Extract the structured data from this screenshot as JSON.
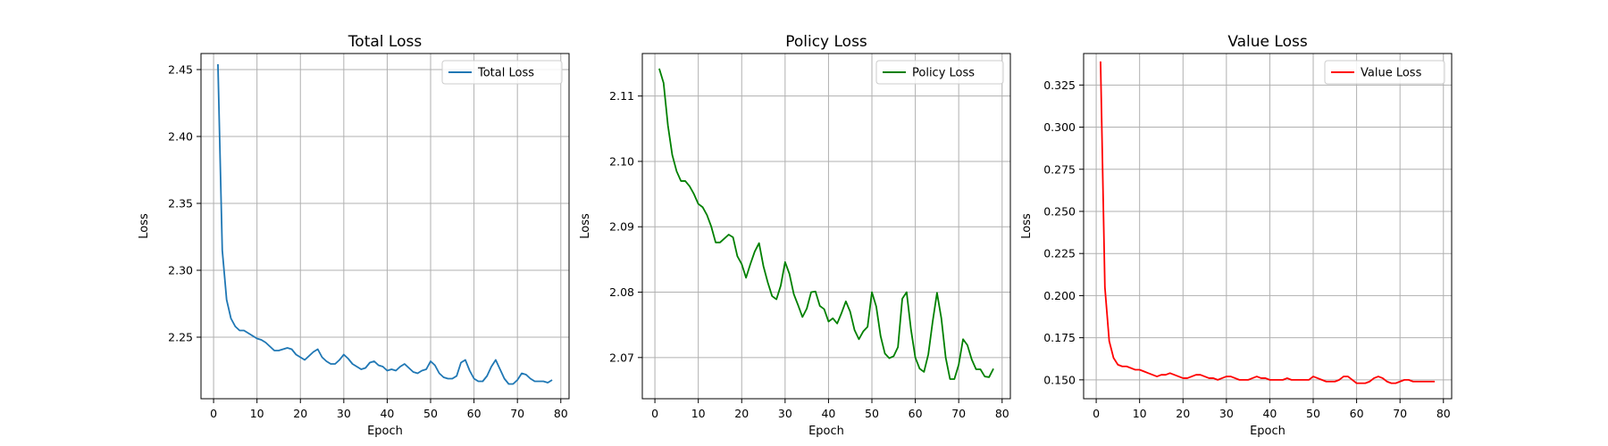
{
  "chart_data": [
    {
      "type": "line",
      "title": "Total Loss",
      "xlabel": "Epoch",
      "ylabel": "Loss",
      "xlim": [
        -2.9,
        81.9
      ],
      "ylim": [
        2.204,
        2.462
      ],
      "xticks": [
        0,
        10,
        20,
        30,
        40,
        50,
        60,
        70,
        80
      ],
      "yticks": [
        2.25,
        2.3,
        2.35,
        2.4,
        2.45
      ],
      "ytick_decimals": 2,
      "grid": true,
      "legend": "upper right",
      "series": [
        {
          "name": "Total Loss",
          "color": "#1f77b4",
          "x": [
            1,
            2,
            3,
            4,
            5,
            6,
            7,
            8,
            9,
            10,
            11,
            12,
            13,
            14,
            15,
            16,
            17,
            18,
            19,
            20,
            21,
            22,
            23,
            24,
            25,
            26,
            27,
            28,
            29,
            30,
            31,
            32,
            33,
            34,
            35,
            36,
            37,
            38,
            39,
            40,
            41,
            42,
            43,
            44,
            45,
            46,
            47,
            48,
            49,
            50,
            51,
            52,
            53,
            54,
            55,
            56,
            57,
            58,
            59,
            60,
            61,
            62,
            63,
            64,
            65,
            66,
            67,
            68,
            69,
            70,
            71,
            72,
            73,
            74,
            75,
            76,
            77,
            78
          ],
          "values": [
            2.454,
            2.315,
            2.278,
            2.264,
            2.258,
            2.255,
            2.255,
            2.253,
            2.251,
            2.249,
            2.248,
            2.246,
            2.243,
            2.24,
            2.24,
            2.241,
            2.242,
            2.241,
            2.237,
            2.235,
            2.233,
            2.236,
            2.239,
            2.241,
            2.235,
            2.232,
            2.23,
            2.23,
            2.233,
            2.237,
            2.234,
            2.23,
            2.228,
            2.226,
            2.227,
            2.231,
            2.232,
            2.229,
            2.228,
            2.225,
            2.226,
            2.225,
            2.228,
            2.23,
            2.227,
            2.224,
            2.223,
            2.225,
            2.226,
            2.232,
            2.229,
            2.223,
            2.22,
            2.219,
            2.219,
            2.221,
            2.231,
            2.233,
            2.225,
            2.219,
            2.217,
            2.217,
            2.221,
            2.228,
            2.233,
            2.226,
            2.219,
            2.215,
            2.215,
            2.218,
            2.223,
            2.222,
            2.219,
            2.217,
            2.217,
            2.217,
            2.216,
            2.218
          ]
        }
      ]
    },
    {
      "type": "line",
      "title": "Policy Loss",
      "xlabel": "Epoch",
      "ylabel": "Loss",
      "xlim": [
        -2.9,
        81.9
      ],
      "ylim": [
        2.0637,
        2.1165
      ],
      "xticks": [
        0,
        10,
        20,
        30,
        40,
        50,
        60,
        70,
        80
      ],
      "yticks": [
        2.07,
        2.08,
        2.09,
        2.1,
        2.11
      ],
      "ytick_decimals": 2,
      "grid": true,
      "legend": "upper right",
      "series": [
        {
          "name": "Policy Loss",
          "color": "#008000",
          "x": [
            1,
            2,
            3,
            4,
            5,
            6,
            7,
            8,
            9,
            10,
            11,
            12,
            13,
            14,
            15,
            16,
            17,
            18,
            19,
            20,
            21,
            22,
            23,
            24,
            25,
            26,
            27,
            28,
            29,
            30,
            31,
            32,
            33,
            34,
            35,
            36,
            37,
            38,
            39,
            40,
            41,
            42,
            43,
            44,
            45,
            46,
            47,
            48,
            49,
            50,
            51,
            52,
            53,
            54,
            55,
            56,
            57,
            58,
            59,
            60,
            61,
            62,
            63,
            64,
            65,
            66,
            67,
            68,
            69,
            70,
            71,
            72,
            73,
            74,
            75,
            76,
            77,
            78
          ],
          "values": [
            2.1142,
            2.112,
            2.1055,
            2.101,
            2.0985,
            2.097,
            2.097,
            2.0962,
            2.095,
            2.0935,
            2.093,
            2.0918,
            2.09,
            2.0876,
            2.0876,
            2.0882,
            2.0888,
            2.0884,
            2.0855,
            2.0843,
            2.0822,
            2.0843,
            2.0862,
            2.0875,
            2.084,
            2.0815,
            2.0794,
            2.0789,
            2.081,
            2.0846,
            2.0828,
            2.0797,
            2.078,
            2.0762,
            2.0775,
            2.08,
            2.0801,
            2.0779,
            2.0774,
            2.0755,
            2.076,
            2.0752,
            2.0768,
            2.0786,
            2.077,
            2.0742,
            2.0728,
            2.074,
            2.0747,
            2.08,
            2.0778,
            2.0733,
            2.0706,
            2.0699,
            2.0702,
            2.0716,
            2.079,
            2.08,
            2.0743,
            2.07,
            2.0683,
            2.0678,
            2.0705,
            2.0755,
            2.0799,
            2.076,
            2.07,
            2.0667,
            2.0667,
            2.0689,
            2.0728,
            2.0719,
            2.0697,
            2.0682,
            2.0682,
            2.0671,
            2.067,
            2.0683
          ]
        }
      ]
    },
    {
      "type": "line",
      "title": "Value Loss",
      "xlabel": "Epoch",
      "ylabel": "Loss",
      "xlim": [
        -2.9,
        81.9
      ],
      "ylim": [
        0.1388,
        0.3437
      ],
      "xticks": [
        0,
        10,
        20,
        30,
        40,
        50,
        60,
        70,
        80
      ],
      "yticks": [
        0.15,
        0.175,
        0.2,
        0.225,
        0.25,
        0.275,
        0.3,
        0.325
      ],
      "ytick_decimals": 3,
      "grid": true,
      "legend": "upper right",
      "series": [
        {
          "name": "Value Loss",
          "color": "#ff0000",
          "x": [
            1,
            2,
            3,
            4,
            5,
            6,
            7,
            8,
            9,
            10,
            11,
            12,
            13,
            14,
            15,
            16,
            17,
            18,
            19,
            20,
            21,
            22,
            23,
            24,
            25,
            26,
            27,
            28,
            29,
            30,
            31,
            32,
            33,
            34,
            35,
            36,
            37,
            38,
            39,
            40,
            41,
            42,
            43,
            44,
            45,
            46,
            47,
            48,
            49,
            50,
            51,
            52,
            53,
            54,
            55,
            56,
            57,
            58,
            59,
            60,
            61,
            62,
            63,
            64,
            65,
            66,
            67,
            68,
            69,
            70,
            71,
            72,
            73,
            74,
            75,
            76,
            77,
            78
          ],
          "values": [
            0.339,
            0.205,
            0.173,
            0.163,
            0.159,
            0.158,
            0.158,
            0.157,
            0.156,
            0.156,
            0.155,
            0.154,
            0.153,
            0.152,
            0.153,
            0.153,
            0.154,
            0.153,
            0.152,
            0.151,
            0.151,
            0.152,
            0.153,
            0.153,
            0.152,
            0.151,
            0.151,
            0.15,
            0.151,
            0.152,
            0.152,
            0.151,
            0.15,
            0.15,
            0.15,
            0.151,
            0.152,
            0.151,
            0.151,
            0.15,
            0.15,
            0.15,
            0.15,
            0.151,
            0.15,
            0.15,
            0.15,
            0.15,
            0.15,
            0.152,
            0.151,
            0.15,
            0.149,
            0.149,
            0.149,
            0.15,
            0.152,
            0.152,
            0.15,
            0.148,
            0.148,
            0.148,
            0.149,
            0.151,
            0.152,
            0.151,
            0.149,
            0.148,
            0.148,
            0.149,
            0.15,
            0.15,
            0.149,
            0.149,
            0.149,
            0.149,
            0.149,
            0.149
          ]
        }
      ]
    }
  ]
}
